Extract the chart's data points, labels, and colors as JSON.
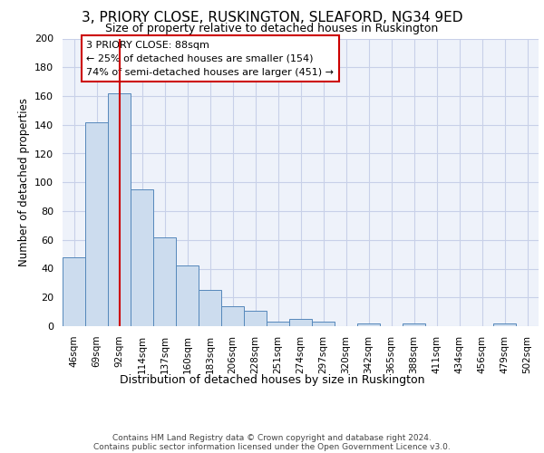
{
  "title1": "3, PRIORY CLOSE, RUSKINGTON, SLEAFORD, NG34 9ED",
  "title2": "Size of property relative to detached houses in Ruskington",
  "xlabel": "Distribution of detached houses by size in Ruskington",
  "ylabel": "Number of detached properties",
  "categories": [
    "46sqm",
    "69sqm",
    "92sqm",
    "114sqm",
    "137sqm",
    "160sqm",
    "183sqm",
    "206sqm",
    "228sqm",
    "251sqm",
    "274sqm",
    "297sqm",
    "320sqm",
    "342sqm",
    "365sqm",
    "388sqm",
    "411sqm",
    "434sqm",
    "456sqm",
    "479sqm",
    "502sqm"
  ],
  "values": [
    48,
    142,
    162,
    95,
    62,
    42,
    25,
    14,
    11,
    3,
    5,
    3,
    0,
    2,
    0,
    2,
    0,
    0,
    0,
    2,
    0
  ],
  "bar_color": "#ccdcee",
  "bar_edge_color": "#5588bb",
  "red_line_x": 2,
  "annotation_text": "3 PRIORY CLOSE: 88sqm\n← 25% of detached houses are smaller (154)\n74% of semi-detached houses are larger (451) →",
  "annotation_box_color": "#ffffff",
  "annotation_box_edge_color": "#cc0000",
  "red_line_color": "#cc0000",
  "footer": "Contains HM Land Registry data © Crown copyright and database right 2024.\nContains public sector information licensed under the Open Government Licence v3.0.",
  "ylim": [
    0,
    200
  ],
  "yticks": [
    0,
    20,
    40,
    60,
    80,
    100,
    120,
    140,
    160,
    180,
    200
  ],
  "background_color": "#eef2fa",
  "grid_color": "#c8d0e8"
}
